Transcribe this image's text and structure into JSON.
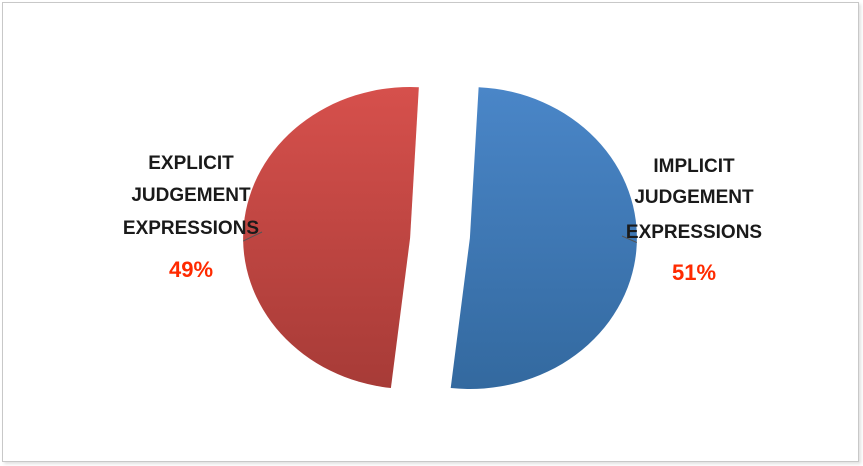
{
  "chart_data": {
    "type": "pie",
    "exploded": true,
    "slices": [
      {
        "label_lines": [
          "IMPLICIT",
          "JUDGEMENT",
          "EXPRESSIONS"
        ],
        "value": 51,
        "percent_label": "51%",
        "color": "#4a86c8",
        "color_dark": "#33699f"
      },
      {
        "label_lines": [
          "EXPLICIT",
          "JUDGEMENT",
          "EXPRESSIONS"
        ],
        "value": 49,
        "percent_label": "49%",
        "color": "#d6504c",
        "color_dark": "#a73b37"
      }
    ],
    "percent_label_color": "#ff2a00",
    "legend": "none"
  }
}
